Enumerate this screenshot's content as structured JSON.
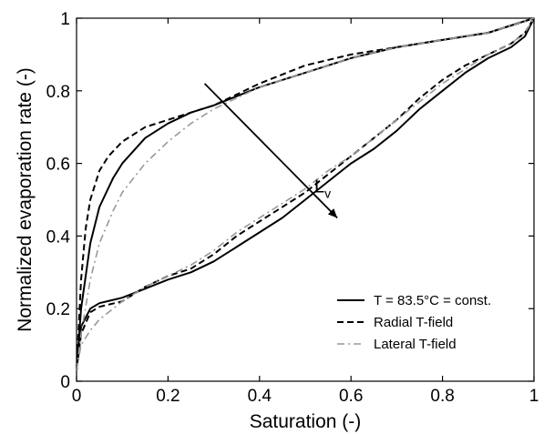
{
  "chart_data": {
    "type": "line",
    "xlabel": "Saturation (-)",
    "ylabel": "Normalized evaporation rate (-)",
    "xlim": [
      0,
      1
    ],
    "ylim": [
      0,
      1
    ],
    "xticks": [
      "0",
      "0.2",
      "0.4",
      "0.6",
      "0.8",
      "1"
    ],
    "yticks": [
      "0",
      "0.2",
      "0.4",
      "0.6",
      "0.8",
      "1"
    ],
    "xtick_values": [
      0,
      0.2,
      0.4,
      0.6,
      0.8,
      1
    ],
    "ytick_values": [
      0,
      0.2,
      0.4,
      0.6,
      0.8,
      1
    ],
    "grid": false,
    "legend_position": "bottom-right",
    "series": [
      {
        "name": "T = 83.5°C = const.",
        "style": "solid",
        "color": "#000000",
        "upper_x": [
          0,
          0.01,
          0.03,
          0.05,
          0.08,
          0.1,
          0.15,
          0.2,
          0.25,
          0.3,
          0.4,
          0.5,
          0.6,
          0.7,
          0.8,
          0.9,
          1.0
        ],
        "upper_y": [
          0.03,
          0.2,
          0.38,
          0.48,
          0.56,
          0.6,
          0.67,
          0.71,
          0.74,
          0.76,
          0.81,
          0.85,
          0.89,
          0.92,
          0.94,
          0.96,
          1.0
        ],
        "lower_x": [
          0,
          0.01,
          0.03,
          0.05,
          0.1,
          0.15,
          0.2,
          0.25,
          0.3,
          0.35,
          0.4,
          0.45,
          0.5,
          0.55,
          0.6,
          0.65,
          0.7,
          0.75,
          0.8,
          0.85,
          0.9,
          0.95,
          0.98,
          1.0
        ],
        "lower_y": [
          0.03,
          0.15,
          0.2,
          0.215,
          0.23,
          0.255,
          0.28,
          0.3,
          0.33,
          0.37,
          0.41,
          0.45,
          0.5,
          0.55,
          0.6,
          0.64,
          0.69,
          0.75,
          0.8,
          0.85,
          0.89,
          0.92,
          0.95,
          1.0
        ]
      },
      {
        "name": "Radial T-field",
        "style": "dashed",
        "color": "#000000",
        "upper_x": [
          0,
          0.01,
          0.02,
          0.03,
          0.05,
          0.07,
          0.1,
          0.15,
          0.2,
          0.25,
          0.3,
          0.4,
          0.5,
          0.6,
          0.7,
          0.8,
          0.9,
          1.0
        ],
        "upper_y": [
          0.03,
          0.28,
          0.42,
          0.5,
          0.58,
          0.62,
          0.66,
          0.7,
          0.72,
          0.74,
          0.76,
          0.82,
          0.87,
          0.9,
          0.92,
          0.94,
          0.96,
          1.0
        ],
        "lower_x": [
          0,
          0.01,
          0.03,
          0.05,
          0.1,
          0.15,
          0.2,
          0.25,
          0.3,
          0.35,
          0.4,
          0.45,
          0.5,
          0.55,
          0.6,
          0.65,
          0.7,
          0.75,
          0.8,
          0.85,
          0.9,
          0.95,
          0.98,
          1.0
        ],
        "lower_y": [
          0.03,
          0.13,
          0.19,
          0.205,
          0.22,
          0.26,
          0.29,
          0.31,
          0.35,
          0.4,
          0.44,
          0.48,
          0.52,
          0.57,
          0.62,
          0.67,
          0.72,
          0.78,
          0.83,
          0.87,
          0.9,
          0.93,
          0.96,
          1.0
        ]
      },
      {
        "name": "Lateral T-field",
        "style": "dashdot",
        "color": "#999999",
        "upper_x": [
          0,
          0.01,
          0.03,
          0.05,
          0.08,
          0.1,
          0.15,
          0.2,
          0.25,
          0.3,
          0.35,
          0.4,
          0.5,
          0.6,
          0.7,
          0.8,
          0.9,
          1.0
        ],
        "upper_y": [
          0.03,
          0.13,
          0.28,
          0.38,
          0.47,
          0.52,
          0.6,
          0.66,
          0.71,
          0.75,
          0.78,
          0.81,
          0.85,
          0.89,
          0.92,
          0.94,
          0.96,
          1.0
        ],
        "lower_x": [
          0,
          0.01,
          0.03,
          0.05,
          0.1,
          0.15,
          0.2,
          0.25,
          0.3,
          0.35,
          0.4,
          0.45,
          0.5,
          0.55,
          0.6,
          0.65,
          0.7,
          0.75,
          0.8,
          0.85,
          0.9,
          0.95,
          0.98,
          1.0
        ],
        "lower_y": [
          0.03,
          0.1,
          0.14,
          0.17,
          0.22,
          0.26,
          0.29,
          0.32,
          0.36,
          0.41,
          0.45,
          0.49,
          0.53,
          0.58,
          0.62,
          0.67,
          0.72,
          0.77,
          0.82,
          0.86,
          0.9,
          0.93,
          0.96,
          1.0
        ]
      }
    ],
    "annotations": [
      {
        "type": "arrow",
        "from": [
          0.28,
          0.82
        ],
        "to": [
          0.57,
          0.45
        ]
      },
      {
        "type": "text",
        "main": "L",
        "sub": "v",
        "x": 0.52,
        "y": 0.52
      }
    ]
  }
}
